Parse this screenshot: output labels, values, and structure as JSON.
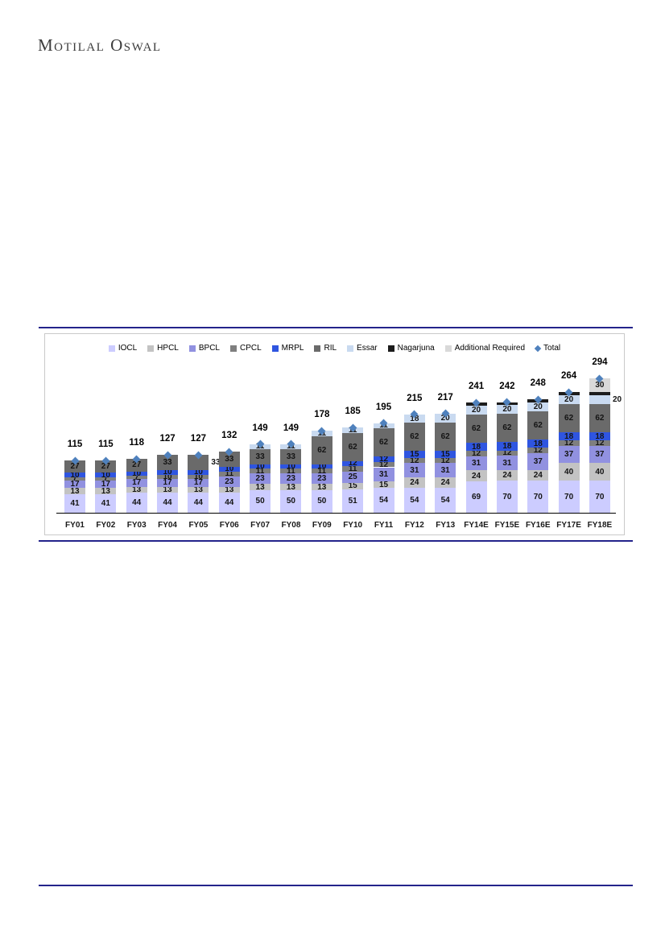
{
  "header": {
    "logo_text": "Motilal Oswal"
  },
  "colors": {
    "divider_rule": "#23238b",
    "panel_border": "#c9c9c9",
    "total_marker": "#4f81bd"
  },
  "chart_data": {
    "type": "bar",
    "subtype": "stacked",
    "title": "",
    "xlabel": "",
    "ylabel": "",
    "grid": false,
    "legend_position": "top-center",
    "categories": [
      "FY01",
      "FY02",
      "FY03",
      "FY04",
      "FY05",
      "FY06",
      "FY07",
      "FY08",
      "FY09",
      "FY10",
      "FY11",
      "FY12",
      "FY13",
      "FY14E",
      "FY15E",
      "FY16E",
      "FY17E",
      "FY18E"
    ],
    "series": [
      {
        "name": "IOCL",
        "color": "#ccccff",
        "values": [
          41,
          41,
          44,
          44,
          44,
          44,
          50,
          50,
          50,
          51,
          54,
          54,
          54,
          69,
          70,
          70,
          70,
          70
        ]
      },
      {
        "name": "HPCL",
        "color": "#c3c3c3",
        "values": [
          13,
          13,
          13,
          13,
          13,
          13,
          13,
          13,
          13,
          15,
          15,
          24,
          24,
          24,
          24,
          24,
          40,
          40
        ]
      },
      {
        "name": "BPCL",
        "color": "#9191e0",
        "values": [
          17,
          17,
          17,
          17,
          17,
          23,
          23,
          23,
          23,
          25,
          31,
          31,
          31,
          31,
          31,
          37,
          37,
          37
        ]
      },
      {
        "name": "CPCL",
        "color": "#7f7f7f",
        "values": [
          7,
          7,
          7,
          10,
          10,
          11,
          11,
          11,
          11,
          11,
          12,
          12,
          12,
          12,
          12,
          12,
          12,
          12
        ]
      },
      {
        "name": "MRPL",
        "color": "#2f55e0",
        "values": [
          10,
          10,
          10,
          10,
          10,
          10,
          10,
          10,
          10,
          12,
          12,
          15,
          15,
          18,
          18,
          18,
          18,
          18
        ]
      },
      {
        "name": "RIL",
        "color": "#6a6a6a",
        "values": [
          27,
          27,
          27,
          33,
          33,
          33,
          33,
          33,
          62,
          62,
          62,
          62,
          62,
          62,
          62,
          62,
          62,
          62
        ]
      },
      {
        "name": "Essar",
        "color": "#c9daf0",
        "values": [
          0,
          0,
          0,
          0,
          0,
          0,
          11,
          11,
          11,
          11,
          11,
          18,
          20,
          20,
          20,
          20,
          20,
          20
        ]
      },
      {
        "name": "Nagarjuna",
        "color": "#1c1c1c",
        "values": [
          0,
          0,
          0,
          0,
          0,
          0,
          0,
          0,
          0,
          0,
          0,
          0,
          0,
          6,
          6,
          6,
          6,
          6
        ],
        "show_labels": false
      },
      {
        "name": "Additional Required",
        "color": "#d9d9d9",
        "values": [
          0,
          0,
          0,
          0,
          0,
          0,
          0,
          0,
          0,
          0,
          0,
          0,
          0,
          0,
          0,
          0,
          0,
          30
        ]
      }
    ],
    "total_series": {
      "label": "Total",
      "marker": "diamond",
      "marker_color": "#4f81bd",
      "values": [
        115,
        115,
        118,
        127,
        127,
        132,
        149,
        149,
        178,
        185,
        195,
        215,
        217,
        241,
        242,
        248,
        264,
        294
      ]
    },
    "outside_labels": [
      {
        "category": "FY05",
        "series": "RIL"
      },
      {
        "category": "FY18E",
        "series": "Essar"
      }
    ]
  }
}
